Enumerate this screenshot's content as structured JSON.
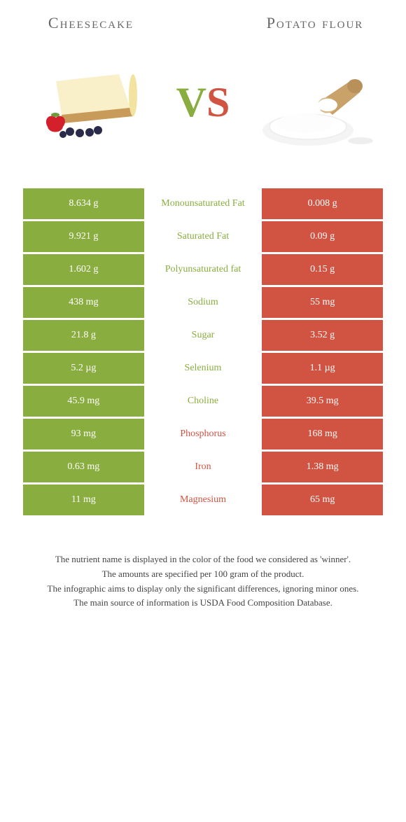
{
  "header": {
    "left_title": "Cheesecake",
    "right_title": "Potato flour",
    "vs_v": "V",
    "vs_s": "S"
  },
  "colors": {
    "green": "#8aad3f",
    "red": "#d15342",
    "background": "#ffffff",
    "text": "#333333"
  },
  "table": {
    "left_bg": "#8aad3f",
    "right_bg": "#d15342",
    "rows": [
      {
        "left": "8.634 g",
        "mid": "Monounsaturated Fat",
        "right": "0.008 g",
        "winner": "left"
      },
      {
        "left": "9.921 g",
        "mid": "Saturated Fat",
        "right": "0.09 g",
        "winner": "left"
      },
      {
        "left": "1.602 g",
        "mid": "Polyunsaturated fat",
        "right": "0.15 g",
        "winner": "left"
      },
      {
        "left": "438 mg",
        "mid": "Sodium",
        "right": "55 mg",
        "winner": "left"
      },
      {
        "left": "21.8 g",
        "mid": "Sugar",
        "right": "3.52 g",
        "winner": "left"
      },
      {
        "left": "5.2 µg",
        "mid": "Selenium",
        "right": "1.1 µg",
        "winner": "left"
      },
      {
        "left": "45.9 mg",
        "mid": "Choline",
        "right": "39.5 mg",
        "winner": "left"
      },
      {
        "left": "93 mg",
        "mid": "Phosphorus",
        "right": "168 mg",
        "winner": "right"
      },
      {
        "left": "0.63 mg",
        "mid": "Iron",
        "right": "1.38 mg",
        "winner": "right"
      },
      {
        "left": "11 mg",
        "mid": "Magnesium",
        "right": "65 mg",
        "winner": "right"
      }
    ]
  },
  "footnotes": [
    "The nutrient name is displayed in the color of the food we considered as 'winner'.",
    "The amounts are specified per 100 gram of the product.",
    "The infographic aims to display only the significant differences, ignoring minor ones.",
    "The main source of information is USDA Food Composition Database."
  ]
}
